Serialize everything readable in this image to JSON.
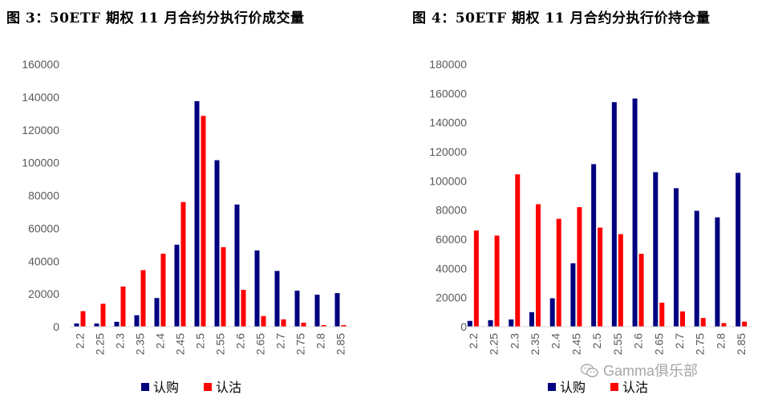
{
  "titles": {
    "left": "图 3：50ETF 期权 11 月合约分执行价成交量",
    "right": "图 4：50ETF 期权 11 月合约分执行价持仓量"
  },
  "watermark": "Gamma俱乐部",
  "colors": {
    "call": "#00007f",
    "put": "#ff0000",
    "axis": "#d9d9d9",
    "tick": "#595959"
  },
  "chart_data": [
    {
      "type": "bar",
      "title": "图 3：50ETF 期权 11 月合约分执行价成交量",
      "categories": [
        "2.2",
        "2.25",
        "2.3",
        "2.35",
        "2.4",
        "2.45",
        "2.5",
        "2.55",
        "2.6",
        "2.65",
        "2.7",
        "2.75",
        "2.8",
        "2.85"
      ],
      "series": [
        {
          "name": "认购",
          "color": "#00007f",
          "values": [
            2000,
            2000,
            3000,
            7000,
            17500,
            50000,
            137500,
            101500,
            74500,
            46500,
            34000,
            22000,
            19500,
            20500
          ]
        },
        {
          "name": "认沽",
          "color": "#ff0000",
          "values": [
            9500,
            14000,
            24500,
            34500,
            44500,
            76000,
            128500,
            48500,
            22500,
            6500,
            4500,
            2500,
            1000,
            1000
          ]
        }
      ],
      "yticks": [
        0,
        20000,
        40000,
        60000,
        80000,
        100000,
        120000,
        140000,
        160000
      ],
      "ylim": [
        0,
        160000
      ],
      "legend": "bottom",
      "grid": false
    },
    {
      "type": "bar",
      "title": "图 4：50ETF 期权 11 月合约分执行价持仓量",
      "categories": [
        "2.2",
        "2.25",
        "2.3",
        "2.35",
        "2.4",
        "2.45",
        "2.5",
        "2.55",
        "2.6",
        "2.65",
        "2.7",
        "2.75",
        "2.8",
        "2.85"
      ],
      "series": [
        {
          "name": "认购",
          "color": "#00007f",
          "values": [
            4000,
            4500,
            5000,
            10000,
            19500,
            43500,
            111500,
            154000,
            156500,
            106000,
            95000,
            79500,
            75000,
            105500
          ]
        },
        {
          "name": "认沽",
          "color": "#ff0000",
          "values": [
            66000,
            62500,
            104500,
            84000,
            74000,
            82000,
            68000,
            63500,
            50000,
            16500,
            10500,
            6000,
            2500,
            3500
          ]
        }
      ],
      "yticks": [
        0,
        20000,
        40000,
        60000,
        80000,
        100000,
        120000,
        140000,
        160000,
        180000
      ],
      "ylim": [
        0,
        180000
      ],
      "legend": "bottom",
      "grid": false
    }
  ]
}
